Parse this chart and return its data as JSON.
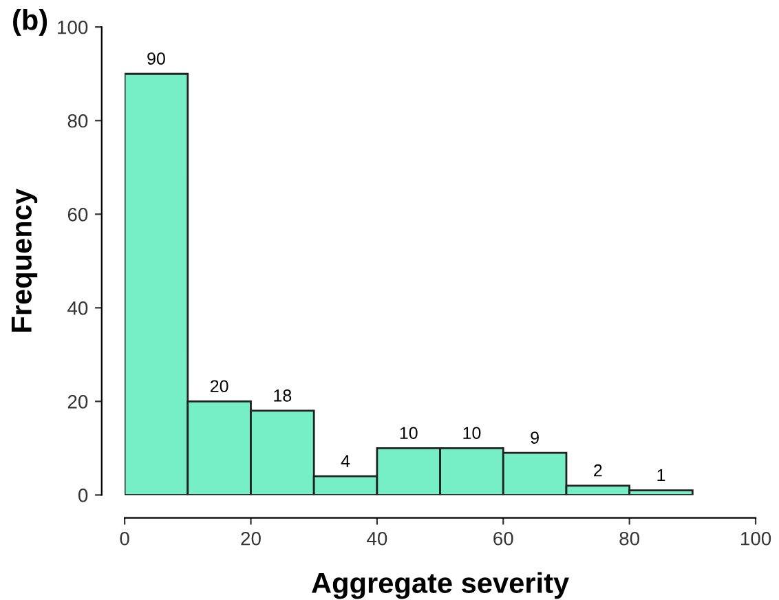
{
  "chart_data": {
    "type": "histogram",
    "title": "(b)",
    "xlabel": "Aggregate severity",
    "ylabel": "Frequency",
    "bins": [
      0,
      10,
      20,
      30,
      40,
      50,
      60,
      70,
      80,
      90
    ],
    "values": [
      90,
      20,
      18,
      4,
      10,
      10,
      9,
      2,
      1
    ],
    "data_labels": true,
    "color": "#76eec6",
    "xlim": [
      0,
      100
    ],
    "xticks": [
      0,
      20,
      40,
      60,
      80,
      100
    ],
    "ylim": [
      0,
      100
    ],
    "yticks": [
      0,
      20,
      40,
      60,
      80,
      100
    ],
    "grid": false
  }
}
